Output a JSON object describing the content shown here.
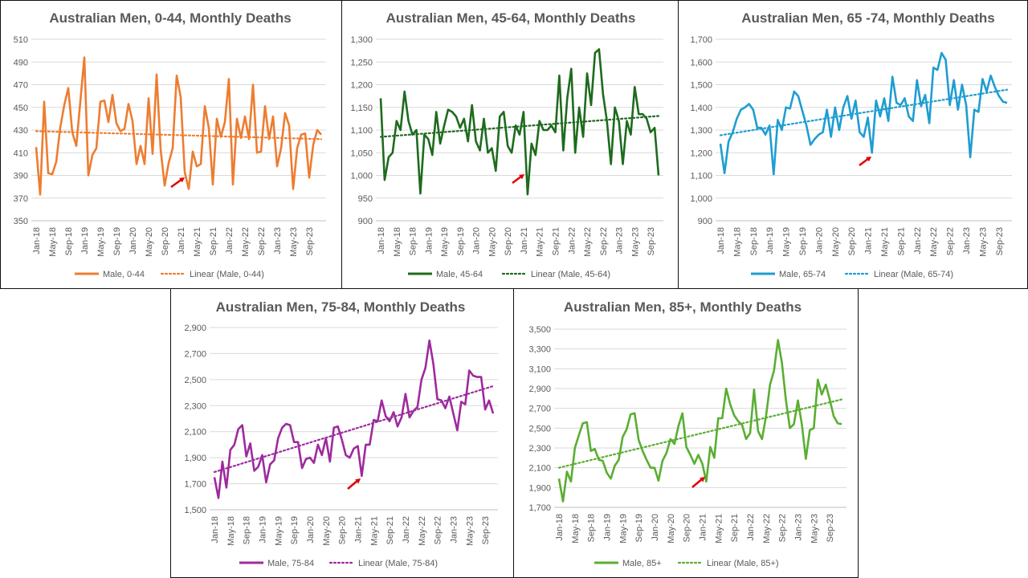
{
  "chart_data": [
    {
      "type": "line",
      "title": "Australian Men, 0-44, Monthly Deaths",
      "color": "#ED7D31",
      "ylim": [
        350,
        510
      ],
      "yticks": [
        "350",
        "370",
        "390",
        "410",
        "430",
        "450",
        "470",
        "490",
        "510"
      ],
      "ytick_values": [
        350,
        370,
        390,
        410,
        430,
        450,
        470,
        490,
        510
      ],
      "x_ticks": [
        "Jan-18",
        "May-18",
        "Sep-18",
        "Jan-19",
        "May-19",
        "Sep-19",
        "Jan-20",
        "May-20",
        "Sep-20",
        "Jan-21",
        "May-21",
        "Sep-21",
        "Jan-22",
        "May-22",
        "Sep-22",
        "Jan-23",
        "May-23",
        "Sep-23"
      ],
      "series": [
        {
          "name": "Male, 0-44",
          "style": "solid",
          "values": [
            415,
            373,
            455,
            392,
            391,
            402,
            432,
            452,
            467,
            428,
            416,
            455,
            494,
            390,
            408,
            414,
            455,
            456,
            437,
            461,
            436,
            429,
            431,
            453,
            438,
            400,
            416,
            400,
            458,
            409,
            479,
            413,
            381,
            401,
            414,
            478,
            459,
            393,
            378,
            411,
            398,
            400,
            451,
            432,
            382,
            440,
            424,
            437,
            475,
            382,
            440,
            423,
            442,
            422,
            470,
            410,
            411,
            451,
            422,
            442,
            398,
            414,
            445,
            434,
            378,
            414,
            426,
            427,
            388,
            417,
            430,
            426
          ]
        },
        {
          "name": "Linear (Male, 0-44)",
          "style": "dotted",
          "trend": [
            429,
            422
          ]
        }
      ]
    },
    {
      "type": "line",
      "title": "Australian Men, 45-64, Monthly Deaths",
      "color": "#1E6B1E",
      "ylim": [
        900,
        1300
      ],
      "yticks": [
        "900",
        "950",
        "1,000",
        "1,050",
        "1,100",
        "1,150",
        "1,200",
        "1,250",
        "1,300"
      ],
      "ytick_values": [
        900,
        950,
        1000,
        1050,
        1100,
        1150,
        1200,
        1250,
        1300
      ],
      "x_ticks": [
        "Jan-18",
        "May-18",
        "Sep-18",
        "Jan-19",
        "May-19",
        "Sep-19",
        "Jan-20",
        "May-20",
        "Sep-20",
        "Jan-21",
        "May-21",
        "Sep-21",
        "Jan-22",
        "May-22",
        "Sep-22",
        "Jan-23",
        "May-23",
        "Sep-23"
      ],
      "series": [
        {
          "name": "Male, 45-64",
          "style": "solid",
          "values": [
            1170,
            990,
            1040,
            1050,
            1120,
            1100,
            1185,
            1120,
            1090,
            1100,
            960,
            1090,
            1080,
            1045,
            1140,
            1070,
            1110,
            1145,
            1140,
            1130,
            1105,
            1125,
            1075,
            1155,
            1075,
            1055,
            1125,
            1050,
            1060,
            1010,
            1130,
            1140,
            1065,
            1050,
            1110,
            1090,
            1140,
            958,
            1070,
            1045,
            1120,
            1100,
            1100,
            1110,
            1095,
            1220,
            1055,
            1170,
            1235,
            1050,
            1150,
            1085,
            1225,
            1155,
            1270,
            1278,
            1180,
            1120,
            1025,
            1150,
            1120,
            1025,
            1120,
            1090,
            1195,
            1135,
            1135,
            1125,
            1095,
            1105,
            1000
          ]
        },
        {
          "name": "Linear (Male, 45-64)",
          "style": "dotted",
          "trend": [
            1085,
            1131
          ]
        }
      ]
    },
    {
      "type": "line",
      "title": "Australian Men, 65 -74, Monthly Deaths",
      "color": "#1F9DD1",
      "ylim": [
        900,
        1700
      ],
      "yticks": [
        "900",
        "1,000",
        "1,100",
        "1,200",
        "1,300",
        "1,400",
        "1,500",
        "1,600",
        "1,700"
      ],
      "ytick_values": [
        900,
        1000,
        1100,
        1200,
        1300,
        1400,
        1500,
        1600,
        1700
      ],
      "x_ticks": [
        "Jan-18",
        "May-18",
        "Sep-18",
        "Jan-19",
        "May-19",
        "Sep-19",
        "Jan-20",
        "May-20",
        "Sep-20",
        "Jan-21",
        "May-21",
        "Sep-21",
        "Jan-22",
        "May-22",
        "Sep-22",
        "Jan-23",
        "May-23",
        "Sep-23"
      ],
      "series": [
        {
          "name": "Male, 65-74",
          "style": "solid",
          "values": [
            1240,
            1110,
            1250,
            1290,
            1350,
            1390,
            1400,
            1415,
            1390,
            1310,
            1310,
            1280,
            1320,
            1105,
            1345,
            1300,
            1400,
            1395,
            1470,
            1450,
            1385,
            1320,
            1235,
            1260,
            1280,
            1290,
            1390,
            1270,
            1400,
            1300,
            1400,
            1450,
            1350,
            1430,
            1290,
            1270,
            1355,
            1200,
            1430,
            1360,
            1440,
            1340,
            1535,
            1420,
            1410,
            1440,
            1360,
            1340,
            1520,
            1405,
            1455,
            1330,
            1575,
            1565,
            1640,
            1610,
            1410,
            1520,
            1390,
            1500,
            1410,
            1180,
            1390,
            1380,
            1525,
            1470,
            1540,
            1490,
            1450,
            1425,
            1420
          ]
        },
        {
          "name": "Linear (Male, 65-74)",
          "style": "dotted",
          "trend": [
            1277,
            1478
          ]
        }
      ]
    },
    {
      "type": "line",
      "title": "Australian Men, 75-84, Monthly Deaths",
      "color": "#9E2A9E",
      "ylim": [
        1500,
        2900
      ],
      "yticks": [
        "1,500",
        "1,700",
        "1,900",
        "2,100",
        "2,300",
        "2,500",
        "2,700",
        "2,900"
      ],
      "ytick_values": [
        1500,
        1700,
        1900,
        2100,
        2300,
        2500,
        2700,
        2900
      ],
      "x_ticks": [
        "Jan-18",
        "May-18",
        "Sep-18",
        "Jan-19",
        "May-19",
        "Sep-19",
        "Jan-20",
        "May-20",
        "Sep-20",
        "Jan-21",
        "May-21",
        "Sep-21",
        "Jan-22",
        "May-22",
        "Sep-22",
        "Jan-23",
        "May-23",
        "Sep-23"
      ],
      "series": [
        {
          "name": "Male, 75-84",
          "style": "solid",
          "values": [
            1750,
            1590,
            1870,
            1670,
            1960,
            2000,
            2120,
            2150,
            1910,
            2010,
            1800,
            1830,
            1920,
            1710,
            1850,
            1880,
            2050,
            2130,
            2160,
            2150,
            2020,
            2020,
            1820,
            1890,
            1900,
            1860,
            2000,
            1920,
            2050,
            1870,
            2130,
            2140,
            2040,
            1920,
            1900,
            1970,
            1990,
            1760,
            2000,
            2000,
            2190,
            2180,
            2340,
            2220,
            2180,
            2250,
            2140,
            2210,
            2390,
            2210,
            2260,
            2290,
            2500,
            2590,
            2800,
            2620,
            2350,
            2340,
            2280,
            2370,
            2240,
            2110,
            2330,
            2310,
            2570,
            2530,
            2520,
            2520,
            2270,
            2340,
            2240
          ]
        },
        {
          "name": "Linear (Male, 75-84)",
          "style": "dotted",
          "trend": [
            1790,
            2450
          ]
        }
      ]
    },
    {
      "type": "line",
      "title": "Australian Men, 85+, Monthly Deaths",
      "color": "#5AAE32",
      "ylim": [
        1700,
        3500
      ],
      "yticks": [
        "1,700",
        "1,900",
        "2,100",
        "2,300",
        "2,500",
        "2,700",
        "2,900",
        "3,100",
        "3,300",
        "3,500"
      ],
      "ytick_values": [
        1700,
        1900,
        2100,
        2300,
        2500,
        2700,
        2900,
        3100,
        3300,
        3500
      ],
      "x_ticks": [
        "Jan-18",
        "May-18",
        "Sep-18",
        "Jan-19",
        "May-19",
        "Sep-19",
        "Jan-20",
        "May-20",
        "Sep-20",
        "Jan-21",
        "May-21",
        "Sep-21",
        "Jan-22",
        "May-22",
        "Sep-22",
        "Jan-23",
        "May-23",
        "Sep-23"
      ],
      "series": [
        {
          "name": "Male, 85+",
          "style": "solid",
          "values": [
            1990,
            1760,
            2060,
            1960,
            2300,
            2430,
            2550,
            2560,
            2270,
            2290,
            2180,
            2170,
            2050,
            1990,
            2120,
            2180,
            2410,
            2490,
            2640,
            2650,
            2380,
            2270,
            2180,
            2100,
            2100,
            1970,
            2170,
            2250,
            2390,
            2340,
            2520,
            2650,
            2310,
            2230,
            2140,
            2230,
            2140,
            1960,
            2310,
            2200,
            2600,
            2600,
            2900,
            2740,
            2630,
            2570,
            2530,
            2390,
            2450,
            2890,
            2470,
            2390,
            2620,
            2940,
            3080,
            3390,
            3160,
            2780,
            2500,
            2540,
            2780,
            2540,
            2190,
            2480,
            2500,
            2990,
            2840,
            2940,
            2790,
            2620,
            2550,
            2540
          ]
        },
        {
          "name": "Linear (Male, 85+)",
          "style": "dotted",
          "trend": [
            2100,
            2790
          ]
        }
      ]
    }
  ]
}
